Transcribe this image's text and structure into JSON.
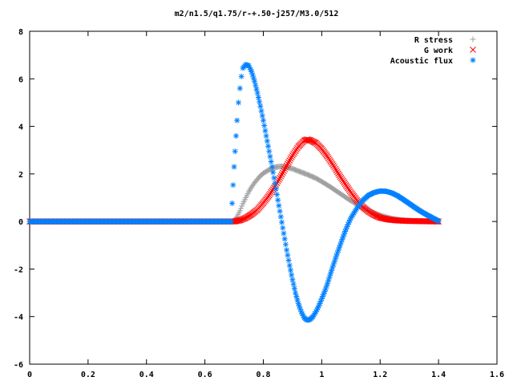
{
  "chart_data": {
    "type": "scatter",
    "title": "m2/n1.5/q1.75/r-+.50-j257/M3.0/512",
    "xlabel": "",
    "ylabel": "",
    "xlim": [
      0,
      1.6
    ],
    "ylim": [
      -6,
      8
    ],
    "x_ticks": [
      "0",
      "0.2",
      "0.4",
      "0.6",
      "0.8",
      "1",
      "1.2",
      "1.4",
      "1.6"
    ],
    "y_ticks": [
      "-6",
      "-4",
      "-2",
      "0",
      "2",
      "4",
      "6",
      "8"
    ],
    "legend_position": "top-right",
    "grid": false,
    "series": [
      {
        "name": "R stress",
        "marker": "plus",
        "color": "#a0a0a0",
        "points": [
          [
            0.0,
            0
          ],
          [
            0.1,
            0
          ],
          [
            0.2,
            0
          ],
          [
            0.3,
            0
          ],
          [
            0.4,
            0
          ],
          [
            0.5,
            0
          ],
          [
            0.6,
            0
          ],
          [
            0.69,
            0
          ],
          [
            0.7,
            0.02
          ],
          [
            0.71,
            0.2
          ],
          [
            0.72,
            0.45
          ],
          [
            0.73,
            0.75
          ],
          [
            0.74,
            1.0
          ],
          [
            0.75,
            1.25
          ],
          [
            0.76,
            1.45
          ],
          [
            0.77,
            1.63
          ],
          [
            0.78,
            1.78
          ],
          [
            0.79,
            1.92
          ],
          [
            0.8,
            2.03
          ],
          [
            0.82,
            2.18
          ],
          [
            0.84,
            2.28
          ],
          [
            0.86,
            2.32
          ],
          [
            0.88,
            2.28
          ],
          [
            0.9,
            2.22
          ],
          [
            0.92,
            2.12
          ],
          [
            0.95,
            1.98
          ],
          [
            0.98,
            1.82
          ],
          [
            1.0,
            1.68
          ],
          [
            1.03,
            1.45
          ],
          [
            1.06,
            1.2
          ],
          [
            1.09,
            0.95
          ],
          [
            1.12,
            0.72
          ],
          [
            1.15,
            0.52
          ],
          [
            1.18,
            0.35
          ],
          [
            1.21,
            0.22
          ],
          [
            1.24,
            0.12
          ],
          [
            1.27,
            0.06
          ],
          [
            1.3,
            0.03
          ],
          [
            1.33,
            0.01
          ],
          [
            1.36,
            0.01
          ],
          [
            1.4,
            0.0
          ]
        ]
      },
      {
        "name": "G work",
        "marker": "cross",
        "color": "#ff0000",
        "points": [
          [
            0.0,
            0
          ],
          [
            0.1,
            0
          ],
          [
            0.2,
            0
          ],
          [
            0.3,
            0
          ],
          [
            0.4,
            0
          ],
          [
            0.5,
            0
          ],
          [
            0.6,
            0
          ],
          [
            0.7,
            0
          ],
          [
            0.72,
            0.05
          ],
          [
            0.74,
            0.15
          ],
          [
            0.76,
            0.3
          ],
          [
            0.78,
            0.5
          ],
          [
            0.8,
            0.78
          ],
          [
            0.82,
            1.1
          ],
          [
            0.84,
            1.48
          ],
          [
            0.86,
            1.9
          ],
          [
            0.88,
            2.35
          ],
          [
            0.9,
            2.78
          ],
          [
            0.92,
            3.15
          ],
          [
            0.94,
            3.4
          ],
          [
            0.95,
            3.45
          ],
          [
            0.96,
            3.42
          ],
          [
            0.98,
            3.3
          ],
          [
            1.0,
            3.05
          ],
          [
            1.02,
            2.72
          ],
          [
            1.04,
            2.35
          ],
          [
            1.06,
            1.95
          ],
          [
            1.08,
            1.58
          ],
          [
            1.1,
            1.22
          ],
          [
            1.12,
            0.9
          ],
          [
            1.14,
            0.62
          ],
          [
            1.16,
            0.42
          ],
          [
            1.18,
            0.27
          ],
          [
            1.2,
            0.16
          ],
          [
            1.23,
            0.08
          ],
          [
            1.26,
            0.04
          ],
          [
            1.3,
            0.02
          ],
          [
            1.35,
            0.01
          ],
          [
            1.4,
            0.0
          ]
        ]
      },
      {
        "name": "Acoustic flux",
        "marker": "star",
        "color": "#0080ff",
        "points": [
          [
            0.0,
            0
          ],
          [
            0.1,
            0
          ],
          [
            0.2,
            0
          ],
          [
            0.3,
            0
          ],
          [
            0.4,
            0
          ],
          [
            0.5,
            0
          ],
          [
            0.6,
            0
          ],
          [
            0.69,
            0
          ],
          [
            0.7,
            2.3
          ],
          [
            0.71,
            4.25
          ],
          [
            0.715,
            5.0
          ],
          [
            0.72,
            5.6
          ],
          [
            0.725,
            6.1
          ],
          [
            0.73,
            6.45
          ],
          [
            0.74,
            6.6
          ],
          [
            0.75,
            6.55
          ],
          [
            0.76,
            6.3
          ],
          [
            0.77,
            5.9
          ],
          [
            0.78,
            5.4
          ],
          [
            0.79,
            4.85
          ],
          [
            0.8,
            4.25
          ],
          [
            0.81,
            3.6
          ],
          [
            0.82,
            2.95
          ],
          [
            0.83,
            2.3
          ],
          [
            0.84,
            1.6
          ],
          [
            0.85,
            0.9
          ],
          [
            0.86,
            0.2
          ],
          [
            0.87,
            -0.5
          ],
          [
            0.88,
            -1.2
          ],
          [
            0.89,
            -1.85
          ],
          [
            0.9,
            -2.45
          ],
          [
            0.91,
            -3.0
          ],
          [
            0.92,
            -3.45
          ],
          [
            0.93,
            -3.8
          ],
          [
            0.94,
            -4.05
          ],
          [
            0.95,
            -4.15
          ],
          [
            0.96,
            -4.12
          ],
          [
            0.97,
            -4.0
          ],
          [
            0.98,
            -3.8
          ],
          [
            0.99,
            -3.55
          ],
          [
            1.0,
            -3.25
          ],
          [
            1.01,
            -2.95
          ],
          [
            1.02,
            -2.6
          ],
          [
            1.03,
            -2.2
          ],
          [
            1.04,
            -1.82
          ],
          [
            1.05,
            -1.45
          ],
          [
            1.06,
            -1.1
          ],
          [
            1.07,
            -0.75
          ],
          [
            1.08,
            -0.42
          ],
          [
            1.09,
            -0.12
          ],
          [
            1.1,
            0.15
          ],
          [
            1.12,
            0.55
          ],
          [
            1.14,
            0.88
          ],
          [
            1.16,
            1.1
          ],
          [
            1.18,
            1.22
          ],
          [
            1.2,
            1.28
          ],
          [
            1.22,
            1.27
          ],
          [
            1.24,
            1.2
          ],
          [
            1.26,
            1.08
          ],
          [
            1.28,
            0.92
          ],
          [
            1.3,
            0.75
          ],
          [
            1.32,
            0.58
          ],
          [
            1.34,
            0.42
          ],
          [
            1.36,
            0.28
          ],
          [
            1.38,
            0.15
          ],
          [
            1.4,
            0.02
          ]
        ]
      }
    ]
  }
}
